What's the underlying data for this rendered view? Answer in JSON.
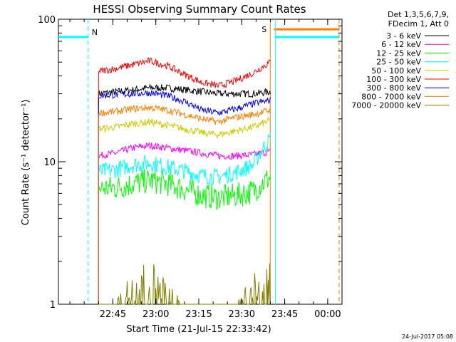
{
  "chart_data": {
    "type": "line",
    "title": "HESSI Observing Summary Count Rates",
    "xlabel": "Start Time (21-Jul-15 22:33:42)",
    "ylabel": "Count Rate (s⁻¹ detector⁻¹)",
    "y_scale": "log",
    "ylim": [
      1,
      100
    ],
    "y_ticks": [
      {
        "value": 1,
        "label": "1"
      },
      {
        "value": 10,
        "label": "10"
      },
      {
        "value": 100,
        "label": "100"
      }
    ],
    "x_range_minutes": [
      -7.7,
      91.3
    ],
    "x_ticks": [
      {
        "minute": 11.3,
        "label": "22:45"
      },
      {
        "minute": 26.3,
        "label": "23:00"
      },
      {
        "minute": 41.3,
        "label": "23:15"
      },
      {
        "minute": 56.3,
        "label": "23:30"
      },
      {
        "minute": 71.3,
        "label": "23:45"
      },
      {
        "minute": 86.3,
        "label": "00:00"
      }
    ],
    "legend_header": [
      "Det 1,3,5,6,7,9,",
      "FDecim 1, Att 0"
    ],
    "legend_position": "right",
    "grid": false,
    "data_window_minutes": [
      6.3,
      66.3
    ],
    "series": [
      {
        "name": "3 - 6 keV",
        "color": "#000000",
        "x": [
          6.3,
          12.3,
          18.3,
          24.3,
          30.3,
          36.3,
          42.3,
          48.3,
          54.3,
          60.3,
          66.3
        ],
        "values": [
          30,
          31,
          32,
          33,
          33,
          32,
          31,
          30,
          30,
          30,
          31
        ]
      },
      {
        "name": "6 - 12 keV",
        "color": "#ff00ff",
        "x": [
          6.3,
          12.3,
          18.3,
          24.3,
          30.3,
          36.3,
          42.3,
          48.3,
          54.3,
          60.3,
          66.3
        ],
        "values": [
          11,
          11.5,
          12.5,
          13,
          12.5,
          12,
          11.5,
          11,
          11,
          11.2,
          11.8
        ]
      },
      {
        "name": "12 - 25 keV",
        "color": "#00ff00",
        "x": [
          6.3,
          12.3,
          18.3,
          24.3,
          30.3,
          36.3,
          42.3,
          48.3,
          54.3,
          60.3,
          66.3
        ],
        "values": [
          6.5,
          6.6,
          7.0,
          7.4,
          7.0,
          6.4,
          5.8,
          5.6,
          5.8,
          6.2,
          7.8
        ]
      },
      {
        "name": "25 - 50 keV",
        "color": "#00ffff",
        "x": [
          6.3,
          12.3,
          18.3,
          24.3,
          30.3,
          36.3,
          42.3,
          48.3,
          54.3,
          60.3,
          66.3
        ],
        "values": [
          8.5,
          8.8,
          9.5,
          9.8,
          9.2,
          8.6,
          8.0,
          7.8,
          8.4,
          9.5,
          14.5
        ]
      },
      {
        "name": "50 - 100 keV",
        "color": "#cccc00",
        "x": [
          6.3,
          12.3,
          18.3,
          24.3,
          30.3,
          36.3,
          42.3,
          48.3,
          54.3,
          60.3,
          66.3
        ],
        "values": [
          17,
          17.5,
          18.5,
          19,
          18,
          17,
          16,
          15.5,
          16.5,
          17.5,
          19.5
        ]
      },
      {
        "name": "100 - 300 keV",
        "color": "#ff0000",
        "x": [
          6.3,
          12.3,
          18.3,
          24.3,
          30.3,
          36.3,
          42.3,
          48.3,
          54.3,
          60.3,
          66.3
        ],
        "values": [
          43,
          45,
          48,
          51,
          47,
          41,
          36,
          34,
          37,
          42,
          50
        ]
      },
      {
        "name": "300 - 800 keV",
        "color": "#0000ff",
        "x": [
          6.3,
          12.3,
          18.3,
          24.3,
          30.3,
          36.3,
          42.3,
          48.3,
          54.3,
          60.3,
          66.3
        ],
        "values": [
          29,
          29.5,
          30,
          30.5,
          29,
          26.5,
          23,
          22,
          23.5,
          25.5,
          27
        ]
      },
      {
        "name": "800 - 7000 keV",
        "color": "#ff8000",
        "x": [
          6.3,
          12.3,
          18.3,
          24.3,
          30.3,
          36.3,
          42.3,
          48.3,
          54.3,
          60.3,
          66.3
        ],
        "values": [
          22,
          22.5,
          23.5,
          24,
          23,
          21.5,
          20,
          19,
          20.5,
          21.5,
          23
        ]
      },
      {
        "name": "7000 - 20000 keV",
        "color": "#808000",
        "x": [
          6.3,
          12.3,
          18.3,
          24.3,
          30.3,
          36.3,
          42.3,
          48.3,
          54.3,
          60.3,
          66.3
        ],
        "values": [
          1,
          1,
          1.5,
          1.7,
          1.3,
          1,
          1,
          1,
          1,
          1.4,
          1.6
        ]
      }
    ],
    "flags": [
      {
        "label": "N",
        "color": "#00ffff",
        "x_end_minute": 2.7,
        "x_dashed_minute": 2.7,
        "level": 75
      },
      {
        "label": "S",
        "color": "#ff8000",
        "x_start_minute": 67.0,
        "x_end_minute": 90.3,
        "level": 85
      },
      {
        "label": "",
        "color": "#00ffff",
        "x_start_minute": 68.0,
        "x_end_minute": 90.3,
        "level": 75
      }
    ],
    "footer_timestamp": "24-Jul-2017 05:08"
  }
}
